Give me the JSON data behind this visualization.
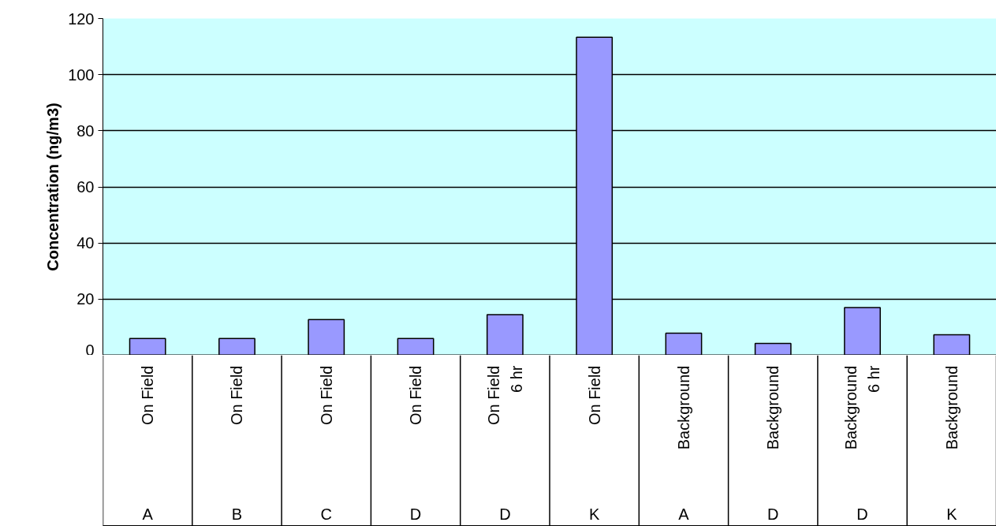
{
  "chart_data": {
    "type": "bar",
    "ylabel": "Concentration (ng/m3)",
    "categories": [
      "On Field\nA",
      "On Field\nB",
      "On Field\nC",
      "On Field\nD",
      "On Field\n6 hr\nD",
      "On Field\nK",
      "Background\nA",
      "Background\nD",
      "Background\n6 hr\nD",
      "Background\nK"
    ],
    "values": [
      6.0,
      6.0,
      12.7,
      6.0,
      14.5,
      113.3,
      7.9,
      4.2,
      17.0,
      7.3
    ],
    "color": "#9999ff",
    "ylim": [
      0,
      120
    ],
    "yticks": [
      0,
      20,
      40,
      60,
      80,
      100,
      120
    ],
    "grid": "y"
  }
}
